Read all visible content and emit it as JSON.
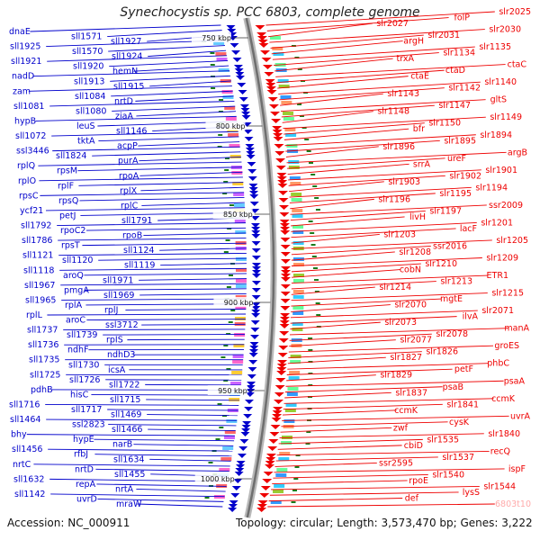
{
  "title": "Synechocystis sp. PCC 6803, complete genome",
  "footer": {
    "accession": "Accession: NC_000911",
    "info": "Topology: circular; Length: 3,573,470 bp; Genes: 3,222"
  },
  "colors": {
    "left_genes": "#0000cc",
    "right_genes": "#ee0000",
    "backbone": "#8a8a8a",
    "gc_marker": "#1a7a1a",
    "highlight_gene": "#ffaaaa"
  },
  "chart_data": {
    "type": "diagram",
    "genome_length_bp": 3573470,
    "topology": "circular",
    "gene_count": 3222,
    "scale_ticks": [
      {
        "label": "750 kbp"
      },
      {
        "label": "800 kbp"
      },
      {
        "label": "850 kbp"
      },
      {
        "label": "900 kbp"
      },
      {
        "label": "950 kbp"
      },
      {
        "label": "1000 kbp"
      }
    ],
    "left_labels": [
      "dnaE",
      "sll1571",
      "sll1927",
      "sll1925",
      "sll1570",
      "sll1924",
      "sll1921",
      "sll1920",
      "hemN",
      "nadD",
      "sll1913",
      "sll1915",
      "zam",
      "sll1084",
      "nrtD",
      "sll1081",
      "sll1080",
      "ziaA",
      "hypB",
      "leuS",
      "sll1146",
      "sll1072",
      "tktA",
      "acpP",
      "ssl3446",
      "sll1824",
      "purA",
      "rplQ",
      "rpsM",
      "rpoA",
      "rplO",
      "rplF",
      "rplX",
      "rpsC",
      "rpsQ",
      "rplC",
      "ycf21",
      "petJ",
      "sll1791",
      "sll1792",
      "rpoC2",
      "rpoB",
      "sll1786",
      "rpsT",
      "sll1124",
      "sll1121",
      "sll1120",
      "sll1119",
      "sll1118",
      "aroQ",
      "sll1971",
      "sll1967",
      "pmgA",
      "sll1969",
      "sll1965",
      "rplA",
      "rplJ",
      "rplL",
      "aroC",
      "ssl3712",
      "sll1737",
      "sll1739",
      "rpIS",
      "sll1736",
      "ndhF",
      "ndhD3",
      "sll1735",
      "sll1730",
      "icsA",
      "sll1725",
      "sll1726",
      "sll1722",
      "pdhB",
      "hisC",
      "sll1715",
      "sll1716",
      "sll1717",
      "sll1469",
      "sll1464",
      "ssl2823",
      "sll1466",
      "bhy",
      "hypE",
      "narB",
      "sll1456",
      "rfbJ",
      "sll1634",
      "nrtC",
      "nrtD",
      "sll1455",
      "sll1632",
      "repA",
      "nrtA",
      "sll1142",
      "uvrD",
      "mraW"
    ],
    "right_labels": [
      "slr2025",
      "folP",
      "slr2027",
      "slr2030",
      "slr2031",
      "argH",
      "slr1135",
      "slr1134",
      "trxA",
      "ctaC",
      "ctaD",
      "ctaE",
      "slr1140",
      "slr1142",
      "slr1143",
      "gltS",
      "slr1147",
      "slr1148",
      "slr1149",
      "slr1150",
      "bfr",
      "slr1894",
      "slr1895",
      "slr1896",
      "argB",
      "ureF",
      "srrA",
      "slr1901",
      "slr1902",
      "slr1903",
      "slr1194",
      "slr1195",
      "slr1196",
      "ssr2009",
      "slr1197",
      "livH",
      "slr1201",
      "lacF",
      "slr1203",
      "slr1205",
      "ssr2016",
      "slr1208",
      "slr1209",
      "slr1210",
      "cobN",
      "ETR1",
      "slr1213",
      "slr1214",
      "slr1215",
      "mgtE",
      "slr2070",
      "slr2071",
      "ilvA",
      "slr2073",
      "manA",
      "slr2078",
      "slr2077",
      "groES",
      "slr1826",
      "slr1827",
      "phbC",
      "petF",
      "slr1829",
      "psaA",
      "psaB",
      "slr1837",
      "ccmK",
      "slr1841",
      "ccmK",
      "uvrA",
      "cysK",
      "zwf",
      "slr1840",
      "slr1535",
      "cbiD",
      "recQ",
      "slr1537",
      "ssr2595",
      "ispF",
      "slr1540",
      "rpoE",
      "slr1544",
      "lysS",
      "def",
      "6803t10"
    ]
  }
}
